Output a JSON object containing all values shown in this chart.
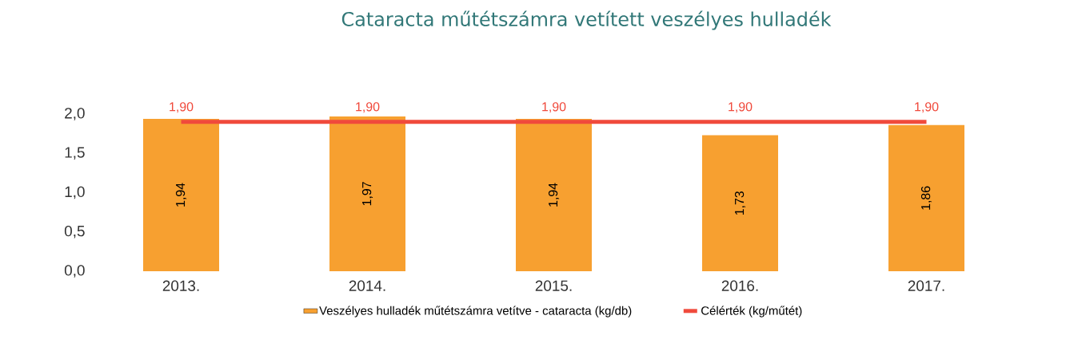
{
  "chart_data": {
    "type": "bar",
    "title": "Cataracta műtétszámra vetített veszélyes hulladék",
    "categories": [
      "2013.",
      "2014.",
      "2015.",
      "2016.",
      "2017."
    ],
    "series": [
      {
        "name": "Veszélyes hulladék műtétszámra vetítve - cataracta (kg/db)",
        "color": "#f7a030",
        "values": [
          1.94,
          1.97,
          1.94,
          1.73,
          1.86
        ],
        "value_labels": [
          "1,94",
          "1,97",
          "1,94",
          "1,73",
          "1,86"
        ]
      },
      {
        "name": "Célérték (kg/műtét)",
        "type": "line",
        "color": "#f04a3c",
        "values": [
          1.9,
          1.9,
          1.9,
          1.9,
          1.9
        ],
        "value_labels": [
          "1,90",
          "1,90",
          "1,90",
          "1,90",
          "1,90"
        ]
      }
    ],
    "ylim": [
      0,
      2.0
    ],
    "yticks": [
      {
        "value": 0,
        "label": "0,0"
      },
      {
        "value": 0.5,
        "label": "0,5"
      },
      {
        "value": 1.0,
        "label": "1,0"
      },
      {
        "value": 1.5,
        "label": "1,5"
      },
      {
        "value": 2.0,
        "label": "2,0"
      }
    ],
    "legend": "bottom"
  }
}
